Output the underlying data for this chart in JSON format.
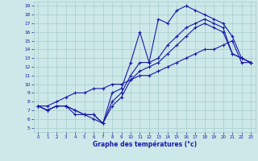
{
  "xlabel": "Graphe des températures (°c)",
  "xlim": [
    -0.5,
    23.5
  ],
  "ylim": [
    4.5,
    19.5
  ],
  "xticks": [
    0,
    1,
    2,
    3,
    4,
    5,
    6,
    7,
    8,
    9,
    10,
    11,
    12,
    13,
    14,
    15,
    16,
    17,
    18,
    19,
    20,
    21,
    22,
    23
  ],
  "yticks": [
    5,
    6,
    7,
    8,
    9,
    10,
    11,
    12,
    13,
    14,
    15,
    16,
    17,
    18,
    19
  ],
  "bg_color": "#cce8e8",
  "line_color": "#1a1aaa",
  "grid_color": "#a8cccc",
  "line1_y": [
    7.5,
    7.0,
    7.5,
    7.5,
    6.5,
    6.5,
    6.5,
    5.5,
    9.0,
    9.5,
    12.5,
    16.0,
    12.5,
    17.5,
    17.0,
    18.5,
    19.0,
    18.5,
    18.0,
    17.5,
    17.0,
    15.5,
    13.0,
    12.5
  ],
  "line2_y": [
    7.5,
    7.0,
    7.5,
    7.5,
    7.0,
    6.5,
    6.5,
    5.5,
    8.0,
    9.0,
    11.0,
    12.5,
    12.5,
    13.0,
    14.5,
    15.5,
    16.5,
    17.0,
    17.5,
    17.0,
    16.5,
    13.5,
    13.0,
    12.5
  ],
  "line3_y": [
    7.5,
    7.0,
    7.5,
    7.5,
    7.0,
    6.5,
    6.0,
    5.5,
    7.5,
    8.5,
    10.5,
    11.5,
    12.0,
    12.5,
    13.5,
    14.5,
    15.5,
    16.5,
    17.0,
    16.5,
    16.0,
    13.5,
    13.0,
    12.5
  ],
  "line4_y": [
    7.5,
    7.5,
    8.0,
    8.5,
    9.0,
    9.0,
    9.5,
    9.5,
    10.0,
    10.0,
    10.5,
    11.0,
    11.0,
    11.5,
    12.0,
    12.5,
    13.0,
    13.5,
    14.0,
    14.0,
    14.5,
    15.0,
    12.5,
    12.5
  ]
}
